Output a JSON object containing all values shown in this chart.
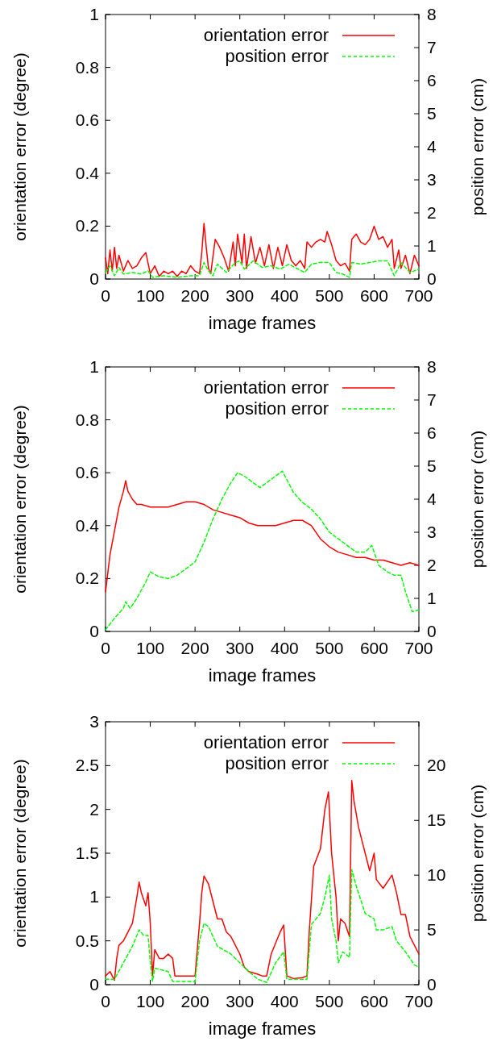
{
  "chart_data": [
    {
      "type": "line",
      "xlabel": "image frames",
      "ylabel": "orientation error (degree)",
      "y2label": "position error (cm)",
      "xlim": [
        0,
        700
      ],
      "xticks": [
        0,
        100,
        200,
        300,
        400,
        500,
        600,
        700
      ],
      "ylim": [
        0,
        1
      ],
      "yticks": [
        0,
        0.2,
        0.4,
        0.6,
        0.8,
        1
      ],
      "y2lim": [
        0,
        8
      ],
      "y2ticks": [
        0,
        1,
        2,
        3,
        4,
        5,
        6,
        7,
        8
      ],
      "legend": "top right",
      "grid": false,
      "series": [
        {
          "name": "orientation error",
          "color": "#ff0000",
          "line_style": "solid",
          "x": [
            0,
            5,
            10,
            15,
            20,
            25,
            30,
            40,
            50,
            60,
            70,
            80,
            90,
            95,
            100,
            110,
            120,
            130,
            140,
            150,
            160,
            170,
            180,
            190,
            200,
            210,
            215,
            220,
            225,
            230,
            235,
            245,
            255,
            265,
            275,
            285,
            290,
            295,
            305,
            310,
            315,
            325,
            335,
            345,
            355,
            365,
            375,
            385,
            395,
            405,
            415,
            425,
            435,
            445,
            450,
            460,
            470,
            480,
            490,
            495,
            505,
            515,
            525,
            535,
            545,
            550,
            560,
            570,
            580,
            590,
            600,
            610,
            620,
            630,
            640,
            645,
            655,
            660,
            670,
            680,
            690,
            700
          ],
          "values": [
            0.08,
            0.02,
            0.11,
            0.03,
            0.12,
            0.04,
            0.09,
            0.03,
            0.07,
            0.04,
            0.05,
            0.08,
            0.1,
            0.06,
            0.02,
            0.05,
            0.01,
            0.03,
            0.02,
            0.03,
            0.01,
            0.03,
            0.02,
            0.05,
            0.03,
            0.02,
            0.1,
            0.21,
            0.12,
            0.04,
            0.02,
            0.15,
            0.12,
            0.08,
            0.03,
            0.14,
            0.05,
            0.17,
            0.06,
            0.17,
            0.04,
            0.16,
            0.06,
            0.12,
            0.05,
            0.13,
            0.04,
            0.12,
            0.05,
            0.13,
            0.07,
            0.05,
            0.07,
            0.04,
            0.14,
            0.12,
            0.14,
            0.15,
            0.14,
            0.18,
            0.13,
            0.07,
            0.05,
            0.06,
            0.03,
            0.15,
            0.17,
            0.14,
            0.13,
            0.15,
            0.2,
            0.15,
            0.16,
            0.12,
            0.15,
            0.04,
            0.11,
            0.04,
            0.09,
            0.02,
            0.09,
            0.05
          ]
        },
        {
          "name": "position error",
          "color": "#00ff00",
          "line_style": "dashed",
          "axis": "y2",
          "x": [
            0,
            10,
            20,
            30,
            40,
            60,
            80,
            95,
            105,
            130,
            160,
            190,
            210,
            220,
            230,
            240,
            250,
            270,
            290,
            300,
            310,
            330,
            350,
            370,
            390,
            410,
            430,
            445,
            460,
            480,
            500,
            515,
            530,
            545,
            550,
            570,
            590,
            610,
            630,
            645,
            660,
            680,
            700
          ],
          "values": [
            0.2,
            0.4,
            0.1,
            0.35,
            0.15,
            0.2,
            0.15,
            0.25,
            0.05,
            0.1,
            0.05,
            0.1,
            0.1,
            0.5,
            0.25,
            0.1,
            0.45,
            0.2,
            0.5,
            0.55,
            0.3,
            0.55,
            0.35,
            0.4,
            0.3,
            0.45,
            0.3,
            0.2,
            0.45,
            0.5,
            0.5,
            0.2,
            0.15,
            0.05,
            0.5,
            0.45,
            0.5,
            0.55,
            0.55,
            0.1,
            0.5,
            0.2,
            0.3
          ]
        }
      ]
    },
    {
      "type": "line",
      "xlabel": "image frames",
      "ylabel": "orientation error (degree)",
      "y2label": "position error (cm)",
      "xlim": [
        0,
        700
      ],
      "xticks": [
        0,
        100,
        200,
        300,
        400,
        500,
        600,
        700
      ],
      "ylim": [
        0,
        1
      ],
      "yticks": [
        0,
        0.2,
        0.4,
        0.6,
        0.8,
        1
      ],
      "y2lim": [
        0,
        8
      ],
      "y2ticks": [
        0,
        1,
        2,
        3,
        4,
        5,
        6,
        7,
        8
      ],
      "legend": "top right",
      "grid": false,
      "series": [
        {
          "name": "orientation error",
          "color": "#ff0000",
          "line_style": "solid",
          "x": [
            0,
            10,
            20,
            30,
            40,
            45,
            50,
            60,
            70,
            80,
            100,
            120,
            140,
            160,
            180,
            200,
            220,
            240,
            260,
            280,
            300,
            320,
            340,
            360,
            380,
            400,
            420,
            440,
            460,
            480,
            500,
            520,
            540,
            560,
            580,
            600,
            620,
            640,
            660,
            680,
            700
          ],
          "values": [
            0.15,
            0.29,
            0.38,
            0.47,
            0.53,
            0.57,
            0.53,
            0.5,
            0.48,
            0.48,
            0.47,
            0.47,
            0.47,
            0.48,
            0.49,
            0.49,
            0.48,
            0.46,
            0.45,
            0.44,
            0.43,
            0.41,
            0.4,
            0.4,
            0.4,
            0.41,
            0.42,
            0.42,
            0.4,
            0.35,
            0.32,
            0.3,
            0.29,
            0.28,
            0.28,
            0.27,
            0.27,
            0.26,
            0.25,
            0.26,
            0.25
          ]
        },
        {
          "name": "position error",
          "color": "#00ff00",
          "line_style": "dashed",
          "axis": "y2",
          "x": [
            0,
            20,
            40,
            45,
            55,
            70,
            90,
            100,
            120,
            140,
            160,
            200,
            220,
            240,
            260,
            280,
            295,
            310,
            330,
            345,
            360,
            380,
            395,
            420,
            440,
            460,
            480,
            500,
            520,
            540,
            560,
            580,
            595,
            610,
            630,
            645,
            660,
            670,
            685,
            700
          ],
          "values": [
            0.05,
            0.4,
            0.7,
            0.9,
            0.7,
            1.0,
            1.5,
            1.8,
            1.65,
            1.6,
            1.7,
            2.1,
            2.7,
            3.4,
            4.0,
            4.5,
            4.8,
            4.7,
            4.5,
            4.35,
            4.5,
            4.7,
            4.85,
            4.2,
            3.9,
            3.7,
            3.4,
            3.0,
            2.8,
            2.6,
            2.4,
            2.4,
            2.6,
            2.0,
            1.8,
            1.7,
            1.7,
            1.2,
            0.6,
            0.65
          ]
        }
      ]
    },
    {
      "type": "line",
      "xlabel": "image frames",
      "ylabel": "orientation error (degree)",
      "y2label": "position error (cm)",
      "xlim": [
        0,
        700
      ],
      "xticks": [
        0,
        100,
        200,
        300,
        400,
        500,
        600,
        700
      ],
      "ylim": [
        0,
        3
      ],
      "yticks": [
        0,
        0.5,
        1,
        1.5,
        2,
        2.5,
        3
      ],
      "y2lim": [
        0,
        24
      ],
      "y2ticks": [
        0,
        5,
        10,
        15,
        20
      ],
      "legend": "top right",
      "grid": false,
      "series": [
        {
          "name": "orientation error",
          "color": "#ff0000",
          "line_style": "solid",
          "x": [
            0,
            10,
            20,
            25,
            30,
            40,
            50,
            60,
            70,
            75,
            80,
            90,
            95,
            100,
            105,
            110,
            120,
            130,
            140,
            150,
            155,
            170,
            190,
            200,
            210,
            215,
            220,
            230,
            240,
            250,
            260,
            270,
            280,
            290,
            300,
            310,
            320,
            340,
            350,
            360,
            370,
            390,
            398,
            405,
            420,
            440,
            450,
            455,
            465,
            480,
            490,
            498,
            505,
            515,
            520,
            525,
            535,
            545,
            550,
            555,
            565,
            575,
            590,
            600,
            605,
            620,
            640,
            650,
            660,
            670,
            680,
            690,
            700
          ],
          "values": [
            0.1,
            0.15,
            0.05,
            0.3,
            0.45,
            0.5,
            0.6,
            0.7,
            1.0,
            1.17,
            1.05,
            0.9,
            1.05,
            0.7,
            0.1,
            0.4,
            0.3,
            0.3,
            0.35,
            0.3,
            0.1,
            0.1,
            0.1,
            0.1,
            0.7,
            1.05,
            1.24,
            1.15,
            0.95,
            0.75,
            0.75,
            0.6,
            0.55,
            0.45,
            0.35,
            0.2,
            0.15,
            0.12,
            0.1,
            0.1,
            0.35,
            0.6,
            0.68,
            0.1,
            0.07,
            0.08,
            0.1,
            0.6,
            1.35,
            1.55,
            2.0,
            2.2,
            1.5,
            1.0,
            0.5,
            0.75,
            0.7,
            0.55,
            2.33,
            2.1,
            1.8,
            1.6,
            1.3,
            1.5,
            1.2,
            1.1,
            1.25,
            1.05,
            0.8,
            0.8,
            0.55,
            0.45,
            0.35
          ]
        },
        {
          "name": "position error",
          "color": "#00ff00",
          "line_style": "dashed",
          "axis": "y2",
          "x": [
            0,
            20,
            40,
            60,
            75,
            85,
            95,
            100,
            105,
            110,
            140,
            150,
            200,
            210,
            220,
            230,
            250,
            280,
            300,
            320,
            340,
            360,
            380,
            398,
            405,
            450,
            460,
            480,
            490,
            500,
            505,
            515,
            520,
            530,
            545,
            550,
            560,
            580,
            600,
            605,
            620,
            640,
            650,
            670,
            690,
            700
          ],
          "values": [
            0.5,
            0.5,
            2,
            3.5,
            5,
            4.5,
            4.5,
            2,
            0.3,
            1.5,
            1.2,
            0.3,
            0.3,
            4,
            5.6,
            5.3,
            3.5,
            2.8,
            2,
            1.2,
            0.5,
            0.2,
            2,
            3,
            0.5,
            0.5,
            5.5,
            6.5,
            8,
            10,
            6,
            4,
            2,
            3,
            2.5,
            10.5,
            9,
            6.5,
            6,
            5,
            5,
            5.3,
            4,
            3,
            1.8,
            1.6
          ]
        }
      ]
    }
  ]
}
